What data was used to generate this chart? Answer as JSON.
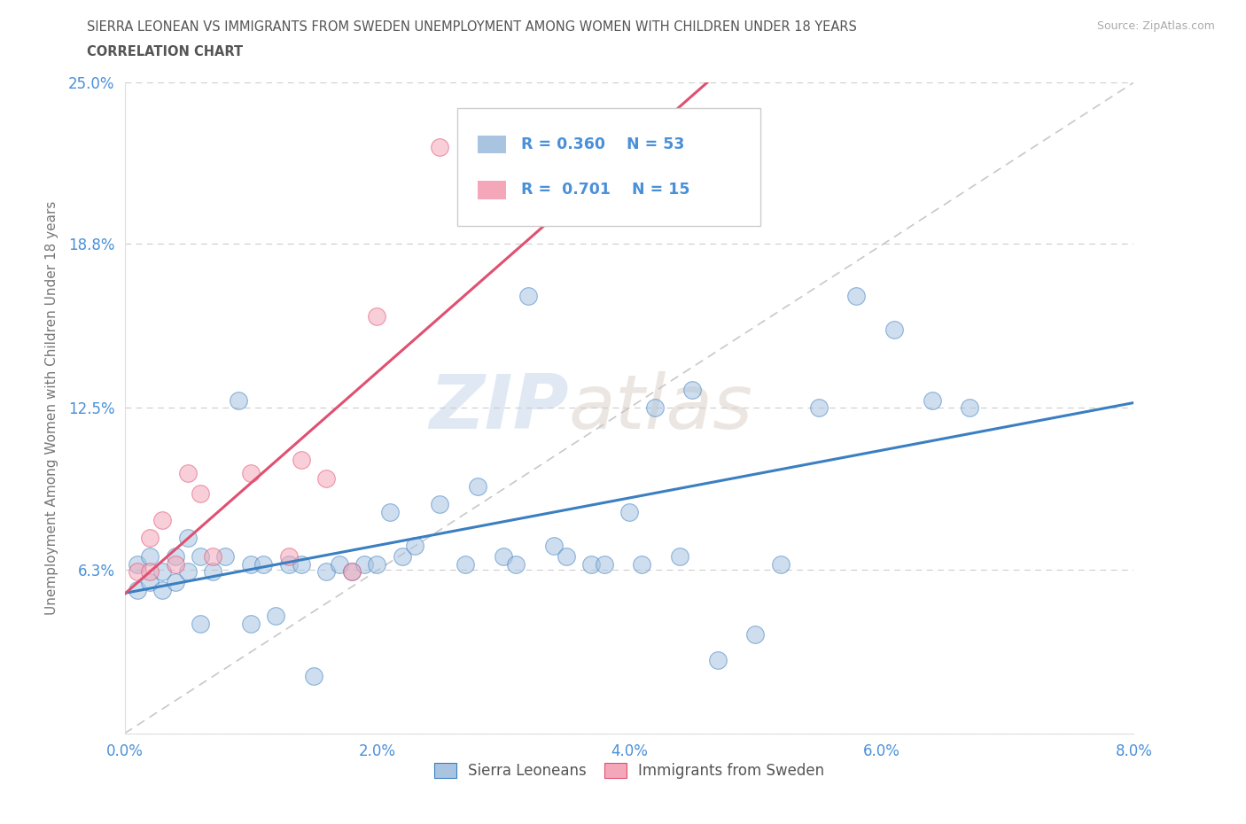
{
  "title_line1": "SIERRA LEONEAN VS IMMIGRANTS FROM SWEDEN UNEMPLOYMENT AMONG WOMEN WITH CHILDREN UNDER 18 YEARS",
  "title_line2": "CORRELATION CHART",
  "source": "Source: ZipAtlas.com",
  "ylabel": "Unemployment Among Women with Children Under 18 years",
  "xlim": [
    0.0,
    0.08
  ],
  "ylim": [
    0.0,
    0.25
  ],
  "xticks": [
    0.0,
    0.02,
    0.04,
    0.06,
    0.08
  ],
  "yticks": [
    0.0,
    0.063,
    0.125,
    0.188,
    0.25
  ],
  "ytick_labels": [
    "",
    "6.3%",
    "12.5%",
    "18.8%",
    "25.0%"
  ],
  "xtick_labels": [
    "0.0%",
    "2.0%",
    "4.0%",
    "6.0%",
    "8.0%"
  ],
  "series1_color": "#a8c4e0",
  "series2_color": "#f4a7b9",
  "trend1_color": "#3a7fc1",
  "trend2_color": "#e05070",
  "R1": 0.36,
  "N1": 53,
  "R2": 0.701,
  "N2": 15,
  "label1": "Sierra Leoneans",
  "label2": "Immigrants from Sweden",
  "watermark_zip": "ZIP",
  "watermark_atlas": "atlas",
  "background_color": "#ffffff",
  "grid_color": "#cccccc",
  "title_color": "#555555",
  "axis_label_color": "#777777",
  "tick_color": "#4a90d9",
  "legend_text_color": "#333333",
  "series1_x": [
    0.001,
    0.001,
    0.002,
    0.002,
    0.003,
    0.003,
    0.004,
    0.004,
    0.005,
    0.005,
    0.006,
    0.006,
    0.007,
    0.008,
    0.009,
    0.01,
    0.01,
    0.011,
    0.012,
    0.013,
    0.014,
    0.015,
    0.016,
    0.017,
    0.018,
    0.019,
    0.02,
    0.021,
    0.022,
    0.023,
    0.025,
    0.027,
    0.028,
    0.03,
    0.031,
    0.032,
    0.034,
    0.035,
    0.037,
    0.038,
    0.04,
    0.041,
    0.042,
    0.044,
    0.045,
    0.047,
    0.05,
    0.052,
    0.055,
    0.058,
    0.061,
    0.064,
    0.067
  ],
  "series1_y": [
    0.055,
    0.065,
    0.058,
    0.068,
    0.055,
    0.062,
    0.058,
    0.068,
    0.062,
    0.075,
    0.068,
    0.042,
    0.062,
    0.068,
    0.128,
    0.042,
    0.065,
    0.065,
    0.045,
    0.065,
    0.065,
    0.022,
    0.062,
    0.065,
    0.062,
    0.065,
    0.065,
    0.085,
    0.068,
    0.072,
    0.088,
    0.065,
    0.095,
    0.068,
    0.065,
    0.168,
    0.072,
    0.068,
    0.065,
    0.065,
    0.085,
    0.065,
    0.125,
    0.068,
    0.132,
    0.028,
    0.038,
    0.065,
    0.125,
    0.168,
    0.155,
    0.128,
    0.125
  ],
  "series2_x": [
    0.001,
    0.002,
    0.002,
    0.003,
    0.004,
    0.005,
    0.006,
    0.007,
    0.01,
    0.013,
    0.014,
    0.016,
    0.018,
    0.02,
    0.025
  ],
  "series2_y": [
    0.062,
    0.062,
    0.075,
    0.082,
    0.065,
    0.1,
    0.092,
    0.068,
    0.1,
    0.068,
    0.105,
    0.098,
    0.062,
    0.16,
    0.225
  ],
  "trend1_x_start": 0.0,
  "trend1_x_end": 0.08,
  "trend2_x_start": 0.0,
  "trend2_x_end": 0.08,
  "diag_color": "#cccccc"
}
